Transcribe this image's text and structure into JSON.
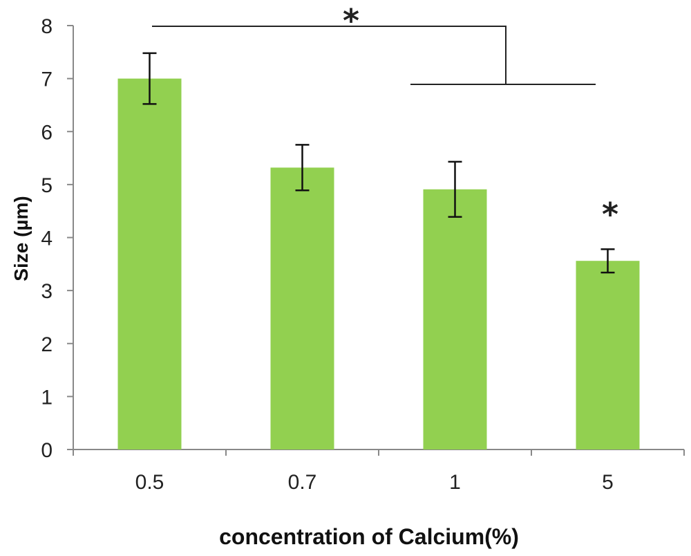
{
  "chart_data": {
    "type": "bar",
    "categories": [
      "0.5",
      "0.7",
      "1",
      "5"
    ],
    "values": [
      7.0,
      5.32,
      4.91,
      3.56
    ],
    "errors": [
      0.48,
      0.43,
      0.52,
      0.22
    ],
    "y_ticks": [
      "0",
      "1",
      "2",
      "3",
      "4",
      "5",
      "6",
      "7",
      "8"
    ],
    "ylim": [
      0,
      8
    ],
    "xlabel": "concentration of Calcium(%)",
    "ylabel": "Size (µm)",
    "grid": false,
    "legend": "none",
    "bar_color": "#92d050",
    "annotations": {
      "bracket_star": "*",
      "bar_star": "*"
    }
  }
}
